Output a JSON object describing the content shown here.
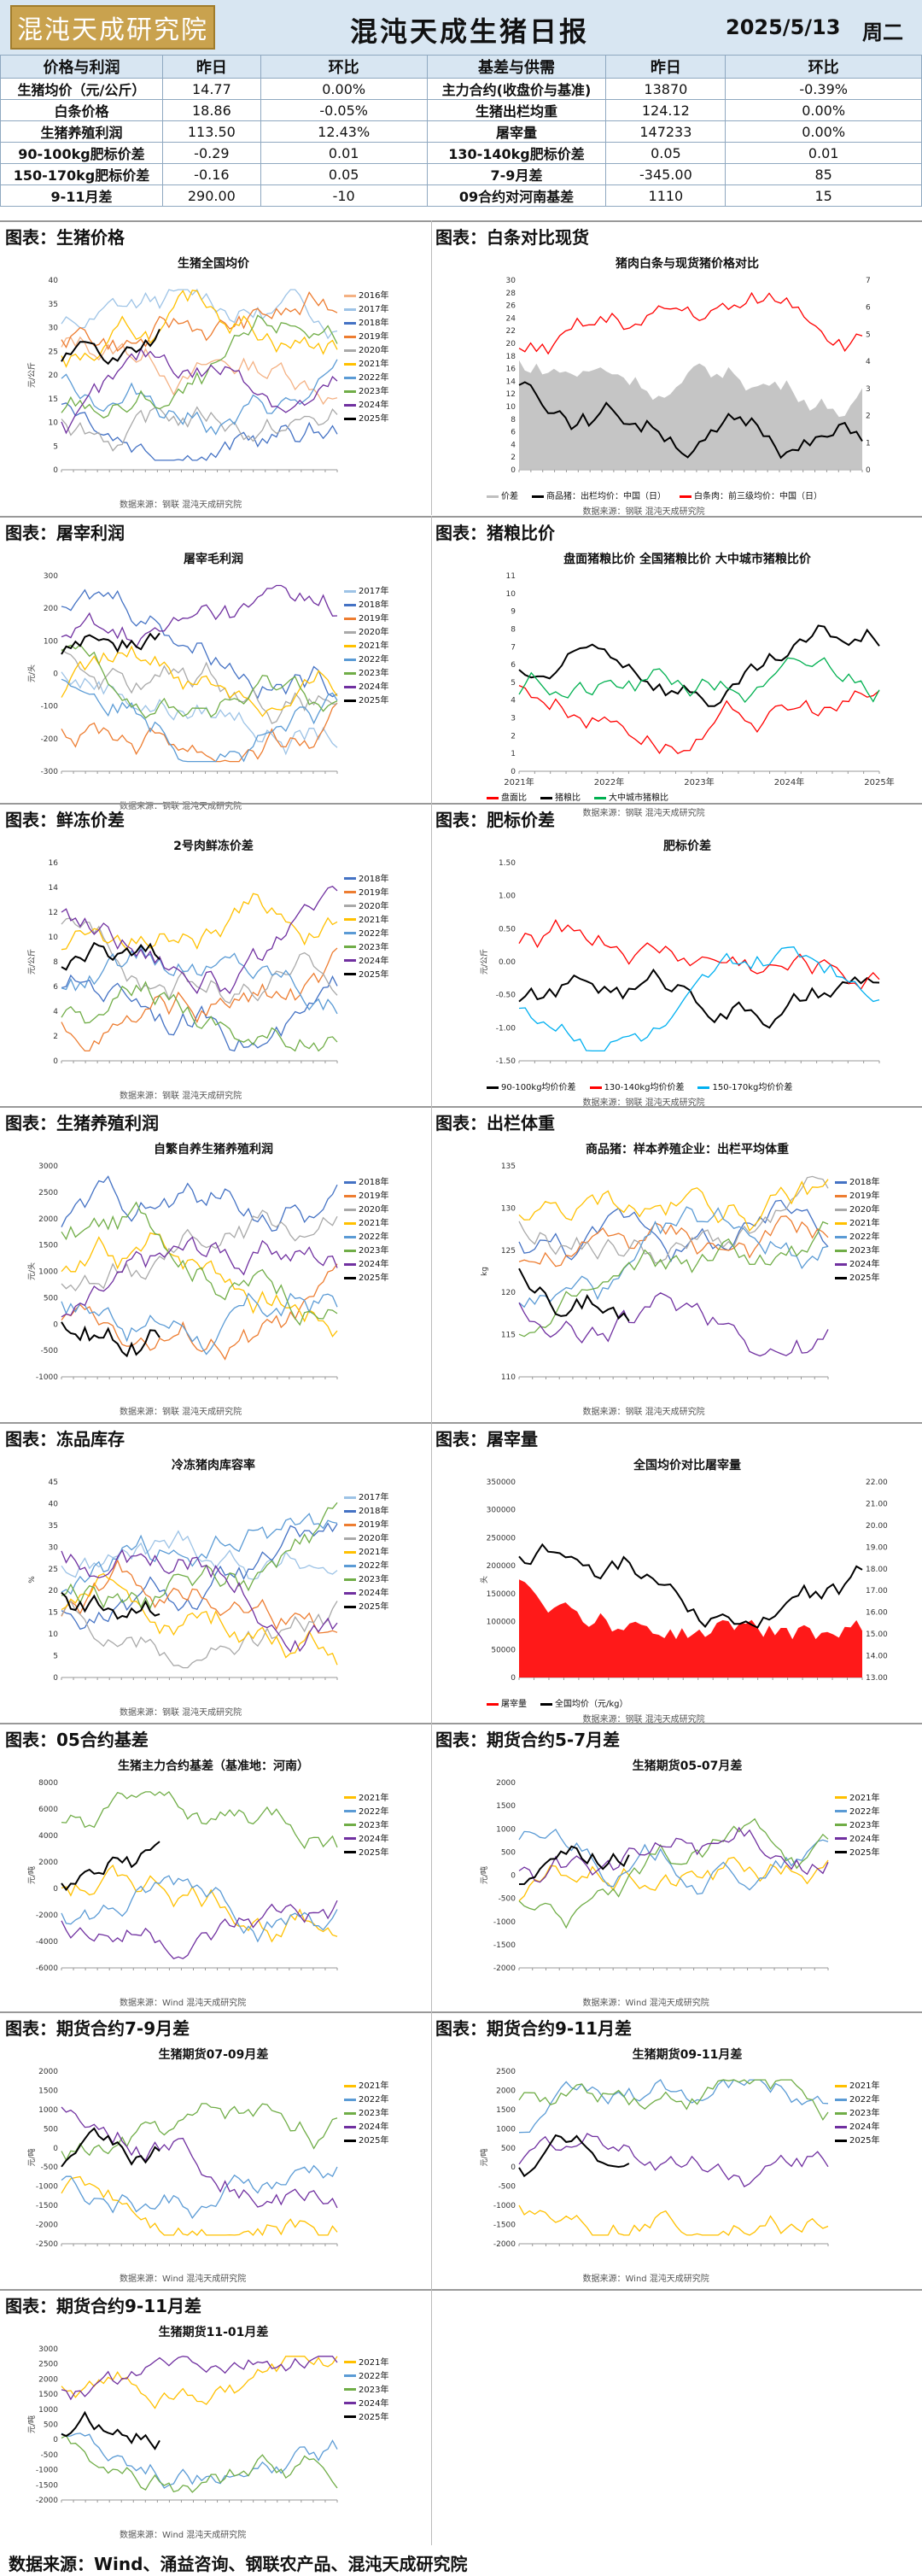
{
  "header": {
    "logo_text": "混沌天成研究院",
    "title": "混沌天成生猪日报",
    "date": "2025/5/13",
    "weekday": "周二"
  },
  "table": {
    "headers": [
      "价格与利润",
      "昨日",
      "环比",
      "基差与供需",
      "昨日",
      "环比"
    ],
    "rows": [
      [
        "生猪均价（元/公斤）",
        "14.77",
        "0.00%",
        "主力合约(收盘价与基准)",
        "13870",
        "-0.39%"
      ],
      [
        "白条价格",
        "18.86",
        "-0.05%",
        "生猪出栏均重",
        "124.12",
        "0.00%"
      ],
      [
        "生猪养殖利润",
        "113.50",
        "12.43%",
        "屠宰量",
        "147233",
        "0.00%"
      ],
      [
        "90-100kg肥标价差",
        "-0.29",
        "0.01",
        "130-140kg肥标价差",
        "0.05",
        "0.01"
      ],
      [
        "150-170kg肥标价差",
        "-0.16",
        "0.05",
        "7-9月差",
        "-345.00",
        "85"
      ],
      [
        "9-11月差",
        "290.00",
        "-10",
        "09合约对河南基差",
        "1110",
        "15"
      ]
    ]
  },
  "sections": [
    {
      "left": "图表：生猪价格",
      "right": "图表：白条对比现货"
    },
    {
      "left": "图表：屠宰利润",
      "right": "图表：猪粮比价"
    },
    {
      "left": "图表：鲜冻价差",
      "right": "图表：肥标价差"
    },
    {
      "left": "图表：生猪养殖利润",
      "right": "图表：出栏体重"
    },
    {
      "left": "图表：冻品库存",
      "right": "图表：屠宰量"
    },
    {
      "left": "图表：05合约基差",
      "right": "图表：期货合约5-7月差"
    },
    {
      "left": "图表：期货合约7-9月差",
      "right": "图表：期货合约9-11月差"
    },
    {
      "left": "图表：期货合约9-11月差",
      "right": ""
    }
  ],
  "source_note": "数据来源：钢联 混沌天成研究院",
  "source_note_wind": "数据来源：Wind 混沌天成研究院",
  "footer": "数据来源：Wind、涌益咨询、钢联农产品、混沌天成研究院",
  "colors": {
    "y2016": "#f4b183",
    "y2017": "#9dc3e6",
    "y2018": "#4472c4",
    "y2019": "#ed7d31",
    "y2020": "#a9a9a9",
    "y2021": "#ffc000",
    "y2022": "#5b9bd5",
    "y2023": "#70ad47",
    "y2024": "#7030a0",
    "y2025": "#000000"
  },
  "chart_data": [
    {
      "type": "line",
      "title": "生猪全国均价",
      "ylabel": "元/公斤",
      "ylim": [
        0,
        40
      ],
      "yticks": [
        "0",
        "5",
        "10",
        "15",
        "20",
        "25",
        "30",
        "35",
        "40"
      ],
      "series": [
        {
          "name": "2016年"
        },
        {
          "name": "2017年"
        },
        {
          "name": "2018年"
        },
        {
          "name": "2019年"
        },
        {
          "name": "2020年"
        },
        {
          "name": "2021年"
        },
        {
          "name": "2022年"
        },
        {
          "name": "2023年"
        },
        {
          "name": "2024年"
        },
        {
          "name": "2025年"
        }
      ]
    },
    {
      "type": "area",
      "title": "猪肉白条与现货猪价格对比",
      "yticks": [
        "0",
        "2",
        "4",
        "6",
        "8",
        "10",
        "12",
        "14",
        "16",
        "18",
        "20",
        "22",
        "24",
        "26",
        "28",
        "30"
      ],
      "y2ticks": [
        "0",
        "1",
        "2",
        "3",
        "4",
        "5",
        "6",
        "7"
      ],
      "series": [
        {
          "name": "价差"
        },
        {
          "name": "商品猪：出栏均价：中国（日）"
        },
        {
          "name": "白条肉：前三级均价：中国（日）"
        }
      ]
    },
    {
      "type": "line",
      "title": "屠宰毛利润",
      "ylabel": "元/头",
      "yticks": [
        "-300",
        "-200",
        "-100",
        "0",
        "100",
        "200",
        "300"
      ],
      "series": [
        {
          "name": "2017年"
        },
        {
          "name": "2018年"
        },
        {
          "name": "2019年"
        },
        {
          "name": "2020年"
        },
        {
          "name": "2021年"
        },
        {
          "name": "2022年"
        },
        {
          "name": "2023年"
        },
        {
          "name": "2024年"
        },
        {
          "name": "2025年"
        }
      ]
    },
    {
      "type": "line",
      "title": "盘面猪粮比价 全国猪粮比价 大中城市猪粮比价",
      "yticks": [
        "0",
        "1",
        "2",
        "3",
        "4",
        "5",
        "6",
        "7",
        "8",
        "9",
        "10",
        "11"
      ],
      "xticks": [
        "2021年",
        "2022年",
        "2023年",
        "2024年",
        "2025年"
      ],
      "series": [
        {
          "name": "盘面比"
        },
        {
          "name": "猪粮比"
        },
        {
          "name": "大中城市猪粮比"
        }
      ]
    },
    {
      "type": "line",
      "title": "2号肉鲜冻价差",
      "ylabel": "元/公斤",
      "yticks": [
        "0",
        "2",
        "4",
        "6",
        "8",
        "10",
        "12",
        "14",
        "16"
      ],
      "series": [
        {
          "name": "2018年"
        },
        {
          "name": "2019年"
        },
        {
          "name": "2020年"
        },
        {
          "name": "2021年"
        },
        {
          "name": "2022年"
        },
        {
          "name": "2023年"
        },
        {
          "name": "2024年"
        },
        {
          "name": "2025年"
        }
      ]
    },
    {
      "type": "line",
      "title": "肥标价差",
      "ylabel": "元/公斤",
      "yticks": [
        "-1.50",
        "-1.00",
        "-0.50",
        "0.00",
        "0.50",
        "1.00",
        "1.50"
      ],
      "series": [
        {
          "name": "90-100kg均价价差"
        },
        {
          "name": "130-140kg均价价差"
        },
        {
          "name": "150-170kg均价价差"
        }
      ]
    },
    {
      "type": "line",
      "title": "自繁自养生猪养殖利润",
      "ylabel": "元/头",
      "yticks": [
        "-1000",
        "-500",
        "0",
        "500",
        "1000",
        "1500",
        "2000",
        "2500",
        "3000"
      ],
      "series": [
        {
          "name": "2018年"
        },
        {
          "name": "2019年"
        },
        {
          "name": "2020年"
        },
        {
          "name": "2021年"
        },
        {
          "name": "2022年"
        },
        {
          "name": "2023年"
        },
        {
          "name": "2024年"
        },
        {
          "name": "2025年"
        }
      ]
    },
    {
      "type": "line",
      "title": "商品猪：样本养殖企业：出栏平均体重",
      "ylabel": "kg",
      "yticks": [
        "110",
        "115",
        "120",
        "125",
        "130",
        "135"
      ],
      "series": [
        {
          "name": "2018年"
        },
        {
          "name": "2019年"
        },
        {
          "name": "2020年"
        },
        {
          "name": "2021年"
        },
        {
          "name": "2022年"
        },
        {
          "name": "2023年"
        },
        {
          "name": "2024年"
        },
        {
          "name": "2025年"
        }
      ]
    },
    {
      "type": "line",
      "title": "冷冻猪肉库容率",
      "ylabel": "%",
      "yticks": [
        "0",
        "5",
        "10",
        "15",
        "20",
        "25",
        "30",
        "35",
        "40",
        "45"
      ],
      "series": [
        {
          "name": "2017年"
        },
        {
          "name": "2018年"
        },
        {
          "name": "2019年"
        },
        {
          "name": "2020年"
        },
        {
          "name": "2021年"
        },
        {
          "name": "2022年"
        },
        {
          "name": "2023年"
        },
        {
          "name": "2024年"
        },
        {
          "name": "2025年"
        }
      ]
    },
    {
      "type": "area",
      "title": "全国均价对比屠宰量",
      "ylabel": "头",
      "yticks": [
        "0",
        "50000",
        "100000",
        "150000",
        "200000",
        "250000",
        "300000",
        "350000"
      ],
      "y2ticks": [
        "13.00",
        "14.00",
        "15.00",
        "16.00",
        "17.00",
        "18.00",
        "19.00",
        "20.00",
        "21.00",
        "22.00"
      ],
      "series": [
        {
          "name": "屠宰量"
        },
        {
          "name": "全国均价（元/kg）"
        }
      ]
    },
    {
      "type": "line",
      "title": "生猪主力合约基差（基准地：河南）",
      "ylabel": "元/吨",
      "yticks": [
        "-6000",
        "-4000",
        "-2000",
        "0",
        "2000",
        "4000",
        "6000",
        "8000"
      ],
      "series": [
        {
          "name": "2021年"
        },
        {
          "name": "2022年"
        },
        {
          "name": "2023年"
        },
        {
          "name": "2024年"
        },
        {
          "name": "2025年"
        }
      ]
    },
    {
      "type": "line",
      "title": "生猪期货05-07月差",
      "ylabel": "元/吨",
      "yticks": [
        "-2000",
        "-1500",
        "-1000",
        "-500",
        "0",
        "500",
        "1000",
        "1500",
        "2000"
      ],
      "series": [
        {
          "name": "2021年"
        },
        {
          "name": "2022年"
        },
        {
          "name": "2023年"
        },
        {
          "name": "2024年"
        },
        {
          "name": "2025年"
        }
      ]
    },
    {
      "type": "line",
      "title": "生猪期货07-09月差",
      "ylabel": "元/吨",
      "yticks": [
        "-2500",
        "-2000",
        "-1500",
        "-1000",
        "-500",
        "0",
        "500",
        "1000",
        "1500",
        "2000"
      ],
      "series": [
        {
          "name": "2021年"
        },
        {
          "name": "2022年"
        },
        {
          "name": "2023年"
        },
        {
          "name": "2024年"
        },
        {
          "name": "2025年"
        }
      ]
    },
    {
      "type": "line",
      "title": "生猪期货09-11月差",
      "ylabel": "元/吨",
      "yticks": [
        "-2000",
        "-1500",
        "-1000",
        "-500",
        "0",
        "500",
        "1000",
        "1500",
        "2000",
        "2500"
      ],
      "series": [
        {
          "name": "2021年"
        },
        {
          "name": "2022年"
        },
        {
          "name": "2023年"
        },
        {
          "name": "2024年"
        },
        {
          "name": "2025年"
        }
      ]
    },
    {
      "type": "line",
      "title": "生猪期货11-01月差",
      "ylabel": "元/吨",
      "yticks": [
        "-2000",
        "-1500",
        "-1000",
        "-500",
        "0",
        "500",
        "1000",
        "1500",
        "2000",
        "2500",
        "3000"
      ],
      "series": [
        {
          "name": "2021年"
        },
        {
          "name": "2022年"
        },
        {
          "name": "2023年"
        },
        {
          "name": "2024年"
        },
        {
          "name": "2025年"
        }
      ]
    }
  ]
}
